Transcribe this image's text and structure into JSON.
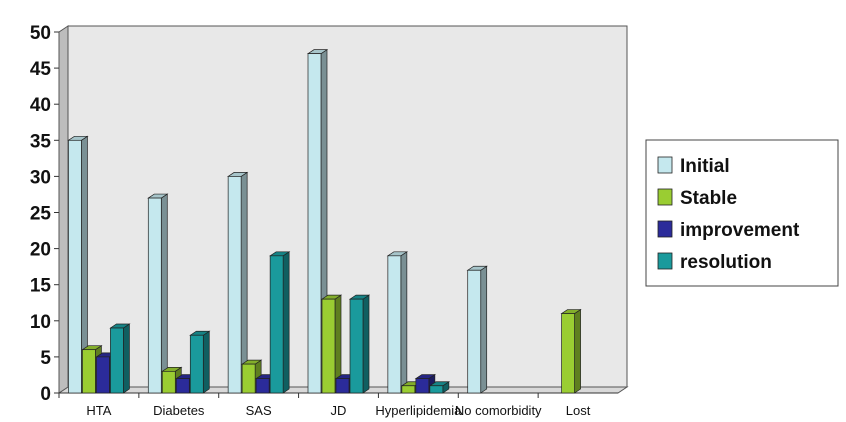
{
  "chart_data": {
    "type": "bar",
    "categories": [
      "HTA",
      "Diabetes",
      "SAS",
      "JD",
      "Hyperlipidemia",
      "No comorbidity",
      "Lost"
    ],
    "series": [
      {
        "name": "Initial",
        "values": [
          35,
          27,
          30,
          47,
          19,
          17,
          0
        ],
        "color": "#c5e8ee"
      },
      {
        "name": "Stable",
        "values": [
          6,
          3,
          4,
          13,
          1,
          0,
          11
        ],
        "color": "#9acd32"
      },
      {
        "name": "improvement",
        "values": [
          5,
          2,
          2,
          2,
          2,
          0,
          0
        ],
        "color": "#2b2b9a"
      },
      {
        "name": "resolution",
        "values": [
          9,
          8,
          19,
          13,
          1,
          0,
          0
        ],
        "color": "#1a9a9c"
      }
    ],
    "ylim": [
      0,
      50
    ],
    "yticks": [
      0,
      5,
      10,
      15,
      20,
      25,
      30,
      35,
      40,
      45,
      50
    ],
    "grid": false,
    "style": "3d-column",
    "legend_position": "right"
  }
}
